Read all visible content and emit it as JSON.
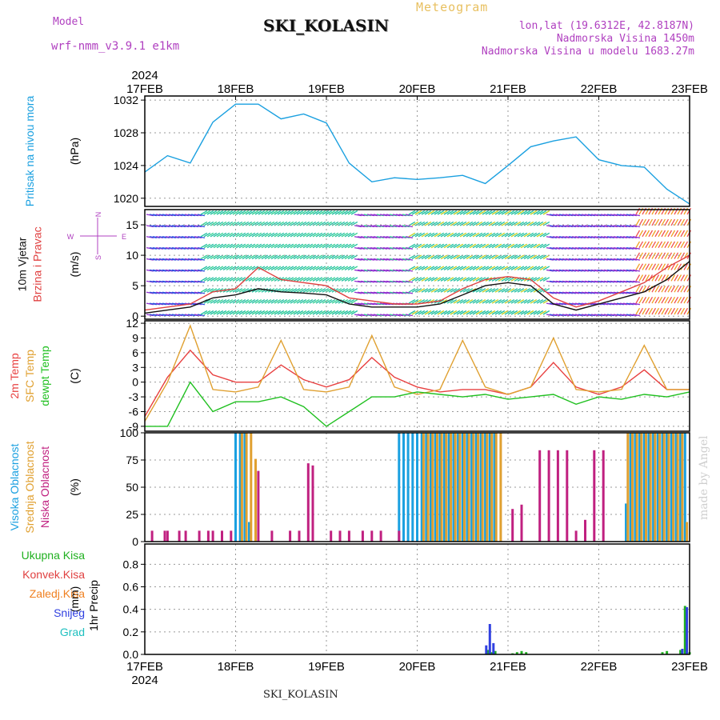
{
  "header": {
    "model_label": "Model",
    "model_name": "wrf-nmm_v3.9.1 e1km",
    "title": "SKI_KOLASIN",
    "meteogram_label": "Meteogram",
    "lonlat": "lon,lat (19.6312E, 42.8187N)",
    "elevation": "Nadmorska Visina 1450m",
    "model_elevation": "Nadmorska Visina u modelu 1683.27m"
  },
  "footer": {
    "station": "SKI_KOLASIN",
    "credit": "made by Angel"
  },
  "time_axis": {
    "year": "2024",
    "labels": [
      "17FEB",
      "18FEB",
      "19FEB",
      "20FEB",
      "21FEB",
      "22FEB",
      "23FEB"
    ]
  },
  "wind_compass": {
    "n": "N",
    "s": "S",
    "e": "E",
    "w": "W"
  },
  "colors": {
    "pressure": "#1aa0e0",
    "wind_speed": "#111111",
    "gust": "#e04040",
    "temp2m": "#e84040",
    "sfc_temp": "#e0a030",
    "dewpoint": "#20c020",
    "cloud_high": "#1aa0e0",
    "cloud_mid": "#e0a030",
    "cloud_low": "#c02080",
    "precip_total": "#20b020",
    "precip_conv": "#e04040",
    "precip_frz": "#f08020",
    "snow": "#3040e0",
    "hail": "#20c0c0"
  },
  "chart_data": [
    {
      "type": "line",
      "panel": "pressure",
      "ylabel_lines": [
        "Pritisak na nivou mora"
      ],
      "unit": "(hPa)",
      "ylim": [
        1019,
        1032.5
      ],
      "yticks": [
        1020,
        1024,
        1028,
        1032
      ],
      "grid": true,
      "series": [
        {
          "x": [
            0,
            0.25,
            0.5,
            0.75,
            1,
            1.25,
            1.5,
            1.75,
            2,
            2.25,
            2.5,
            2.75,
            3,
            3.25,
            3.5,
            3.75,
            4,
            4.25,
            4.5,
            4.75,
            5,
            5.25,
            5.5,
            5.75,
            6
          ],
          "values": [
            1023.2,
            1025.2,
            1024.3,
            1029.3,
            1031.5,
            1031.5,
            1029.7,
            1030.3,
            1029.2,
            1024.3,
            1022.0,
            1022.5,
            1022.3,
            1022.5,
            1022.8,
            1021.8,
            1024.0,
            1026.3,
            1027.0,
            1027.5,
            1024.7,
            1024.0,
            1023.8,
            1021.1,
            1019.3
          ]
        }
      ]
    },
    {
      "type": "line",
      "panel": "wind",
      "ylabel_lines": [
        "10m Vjetar",
        "Brzina i Pravac"
      ],
      "unit": "(m/s)",
      "ylim": [
        -0.5,
        17.5
      ],
      "yticks": [
        0,
        5,
        10,
        15
      ],
      "grid": true,
      "series": [
        {
          "name": "speed",
          "x": [
            0,
            0.25,
            0.5,
            0.75,
            1,
            1.25,
            1.5,
            1.75,
            2,
            2.25,
            2.5,
            2.75,
            3,
            3.25,
            3.5,
            3.75,
            4,
            4.25,
            4.5,
            4.75,
            5,
            5.25,
            5.5,
            5.75,
            6
          ],
          "values": [
            0.5,
            1.0,
            1.5,
            3.0,
            3.5,
            4.5,
            4.0,
            3.8,
            3.5,
            2.0,
            1.5,
            1.5,
            1.5,
            2.0,
            3.5,
            5.0,
            5.5,
            5.0,
            2.0,
            1.0,
            2.0,
            3.0,
            4.0,
            6.0,
            9.0
          ]
        },
        {
          "name": "gust",
          "x": [
            0,
            0.25,
            0.5,
            0.75,
            1,
            1.25,
            1.5,
            1.75,
            2,
            2.25,
            2.5,
            2.75,
            3,
            3.25,
            3.5,
            3.75,
            4,
            4.25,
            4.5,
            4.75,
            5,
            5.25,
            5.5,
            5.75,
            6
          ],
          "values": [
            1.0,
            1.5,
            2.0,
            4.0,
            4.5,
            8.0,
            6.0,
            5.5,
            5.0,
            3.0,
            2.5,
            2.0,
            2.0,
            2.5,
            4.5,
            6.0,
            6.5,
            6.0,
            3.0,
            1.5,
            2.5,
            4.0,
            5.5,
            8.0,
            10.0
          ]
        }
      ]
    },
    {
      "type": "line",
      "panel": "temperature",
      "ylabel_lines": [
        "2m Temp",
        "SFC Temp",
        "dewpt Temp"
      ],
      "unit": "(C)",
      "ylim": [
        -10,
        12.5
      ],
      "yticks": [
        -9,
        -6,
        -3,
        0,
        3,
        6,
        9,
        12
      ],
      "grid": true,
      "series": [
        {
          "name": "2m Temp",
          "x": [
            0,
            0.25,
            0.5,
            0.75,
            1,
            1.25,
            1.5,
            1.75,
            2,
            2.25,
            2.5,
            2.75,
            3,
            3.25,
            3.5,
            3.75,
            4,
            4.25,
            4.5,
            4.75,
            5,
            5.25,
            5.5,
            5.75,
            6
          ],
          "values": [
            -7.0,
            1.0,
            6.5,
            1.5,
            0.0,
            0.0,
            3.5,
            0.5,
            -1.0,
            0.5,
            5.0,
            1.0,
            -1.0,
            -2.0,
            -1.5,
            -1.5,
            -2.5,
            -1.0,
            4.0,
            -1.0,
            -2.5,
            -1.0,
            2.5,
            -1.5,
            -1.5
          ]
        },
        {
          "name": "SFC Temp",
          "x": [
            0,
            0.25,
            0.5,
            0.75,
            1,
            1.25,
            1.5,
            1.75,
            2,
            2.25,
            2.5,
            2.75,
            3,
            3.25,
            3.5,
            3.75,
            4,
            4.25,
            4.5,
            4.75,
            5,
            5.25,
            5.5,
            5.75,
            6
          ],
          "values": [
            -8.0,
            0.0,
            11.5,
            -1.5,
            -2.0,
            -1.0,
            8.5,
            -1.5,
            -2.0,
            -1.0,
            9.5,
            -1.0,
            -2.5,
            -1.5,
            8.5,
            -1.0,
            -2.5,
            -1.0,
            9.0,
            -1.5,
            -2.0,
            -1.5,
            7.5,
            -1.5,
            -1.5
          ]
        },
        {
          "name": "dewpt Temp",
          "x": [
            0,
            0.25,
            0.5,
            0.75,
            1,
            1.25,
            1.5,
            1.75,
            2,
            2.25,
            2.5,
            2.75,
            3,
            3.25,
            3.5,
            3.75,
            4,
            4.25,
            4.5,
            4.75,
            5,
            5.25,
            5.5,
            5.75,
            6
          ],
          "values": [
            -9.0,
            -9.0,
            0.0,
            -6.0,
            -4.0,
            -4.0,
            -3.0,
            -5.0,
            -9.0,
            -6.0,
            -3.0,
            -3.0,
            -2.0,
            -2.5,
            -3.0,
            -2.5,
            -3.5,
            -3.0,
            -2.5,
            -4.5,
            -3.0,
            -3.5,
            -2.5,
            -3.0,
            -2.0
          ]
        }
      ]
    },
    {
      "type": "bar",
      "panel": "cloud",
      "ylabel_lines": [
        "Visoka Oblacnost",
        "Srednja Oblacnost",
        "Niska Oblacnost"
      ],
      "unit": "(%)",
      "ylim": [
        0,
        100
      ],
      "yticks": [
        0,
        25,
        50,
        75,
        100
      ],
      "grid": true,
      "series": [
        {
          "name": "Visoka Oblacnost",
          "x": [
            1.0,
            1.05,
            1.1,
            1.15,
            2.8,
            2.85,
            2.9,
            2.95,
            3.0,
            3.05,
            3.1,
            3.15,
            3.2,
            3.25,
            3.3,
            3.35,
            3.4,
            3.45,
            3.5,
            3.55,
            3.6,
            3.65,
            3.7,
            3.75,
            3.8,
            3.85,
            5.3,
            5.35,
            5.4,
            5.45,
            5.5,
            5.55,
            5.6,
            5.65,
            5.7,
            5.75,
            5.8,
            5.85,
            5.9,
            5.95
          ],
          "values": [
            100,
            100,
            100,
            18,
            100,
            100,
            100,
            100,
            100,
            100,
            100,
            100,
            100,
            100,
            100,
            100,
            100,
            100,
            100,
            100,
            100,
            100,
            100,
            100,
            100,
            100,
            35,
            100,
            100,
            100,
            100,
            100,
            100,
            100,
            100,
            100,
            100,
            100,
            100,
            100
          ]
        },
        {
          "name": "Srednja Oblacnost",
          "x": [
            1.07,
            1.12,
            1.17,
            1.22,
            3.07,
            3.12,
            3.17,
            3.22,
            3.27,
            3.32,
            3.37,
            3.42,
            3.47,
            3.52,
            3.57,
            3.62,
            3.67,
            3.72,
            3.77,
            3.82,
            3.87,
            3.92,
            5.32,
            5.37,
            5.42,
            5.47,
            5.52,
            5.57,
            5.62,
            5.67,
            5.72,
            5.77,
            5.82,
            5.87,
            5.92,
            5.97
          ],
          "values": [
            100,
            100,
            100,
            76,
            100,
            100,
            100,
            100,
            100,
            100,
            100,
            100,
            100,
            100,
            100,
            100,
            100,
            100,
            100,
            100,
            100,
            100,
            100,
            100,
            100,
            100,
            100,
            100,
            100,
            100,
            100,
            100,
            100,
            100,
            100,
            18
          ]
        },
        {
          "name": "Niska Oblacnost",
          "x": [
            0.08,
            0.22,
            0.25,
            0.38,
            0.45,
            0.6,
            0.7,
            0.75,
            0.85,
            0.95,
            1.25,
            1.4,
            1.6,
            1.7,
            1.8,
            1.85,
            2.05,
            2.15,
            2.25,
            2.4,
            2.5,
            2.6,
            2.8,
            4.05,
            4.15,
            4.35,
            4.45,
            4.55,
            4.65,
            4.75,
            4.85,
            4.95,
            5.05
          ],
          "values": [
            10,
            10,
            10,
            10,
            10,
            10,
            10,
            10,
            10,
            10,
            65,
            10,
            10,
            10,
            72,
            70,
            10,
            10,
            10,
            10,
            10,
            10,
            10,
            30,
            34,
            84,
            84,
            84,
            84,
            10,
            20,
            84,
            84
          ]
        }
      ]
    },
    {
      "type": "bar",
      "panel": "precip",
      "ylabel_lines": [
        "1hr Precip"
      ],
      "unit": "(mm)",
      "legend": [
        "Ukupna Kisa",
        "Konvek.Kisa",
        "Zaledj.Kisa",
        "Snijeg",
        "Grad"
      ],
      "ylim": [
        0,
        0.98
      ],
      "yticks": [
        0.0,
        0.2,
        0.4,
        0.6,
        0.8
      ],
      "grid": true,
      "series": [
        {
          "name": "Ukupna Kisa",
          "x": [
            3.78,
            3.82,
            3.86,
            4.05,
            4.1,
            4.15,
            4.2,
            5.7,
            5.75,
            5.9,
            5.95,
            6.0
          ],
          "values": [
            0.04,
            0.02,
            0.03,
            0.01,
            0.02,
            0.03,
            0.02,
            0.02,
            0.03,
            0.04,
            0.43,
            0.02
          ]
        },
        {
          "name": "Snijeg",
          "x": [
            3.76,
            3.8,
            3.84,
            5.92,
            5.97
          ],
          "values": [
            0.08,
            0.27,
            0.1,
            0.05,
            0.42
          ]
        }
      ]
    }
  ]
}
